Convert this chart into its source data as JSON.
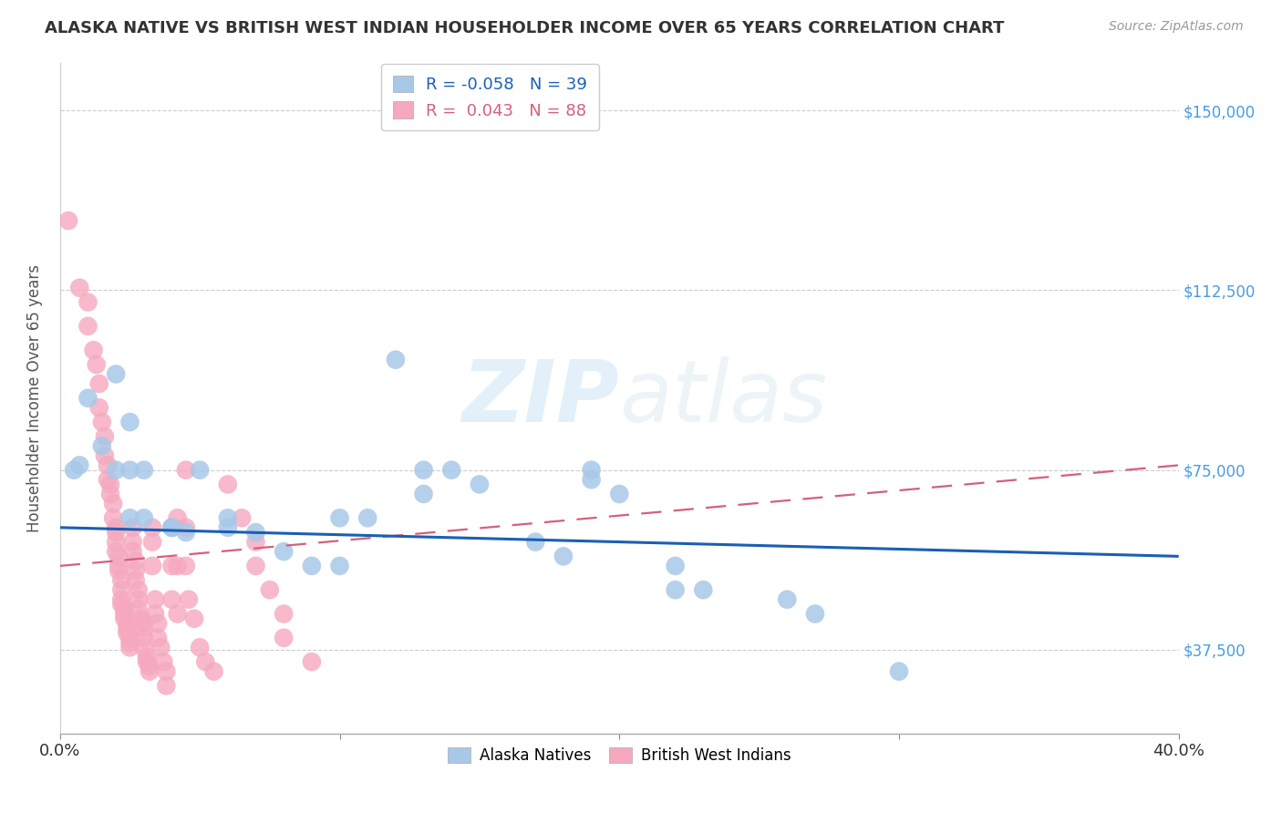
{
  "title": "ALASKA NATIVE VS BRITISH WEST INDIAN HOUSEHOLDER INCOME OVER 65 YEARS CORRELATION CHART",
  "source": "Source: ZipAtlas.com",
  "ylabel": "Householder Income Over 65 years",
  "xlim": [
    0.0,
    0.4
  ],
  "ylim": [
    20000,
    160000
  ],
  "yticks": [
    37500,
    75000,
    112500,
    150000
  ],
  "ytick_labels": [
    "$37,500",
    "$75,000",
    "$112,500",
    "$150,000"
  ],
  "watermark_1": "ZIP",
  "watermark_2": "atlas",
  "alaska_color": "#a8c8e8",
  "bwi_color": "#f5a8be",
  "alaska_line_color": "#1a5fb4",
  "bwi_line_color": "#d4607a",
  "alaska_R": -0.058,
  "alaska_N": 39,
  "bwi_R": 0.043,
  "bwi_N": 88,
  "alaska_trend": [
    63000,
    57000
  ],
  "bwi_trend": [
    55000,
    76000
  ],
  "alaska_points": [
    [
      0.005,
      75000
    ],
    [
      0.007,
      76000
    ],
    [
      0.01,
      90000
    ],
    [
      0.015,
      80000
    ],
    [
      0.02,
      95000
    ],
    [
      0.02,
      75000
    ],
    [
      0.025,
      85000
    ],
    [
      0.025,
      75000
    ],
    [
      0.025,
      65000
    ],
    [
      0.03,
      75000
    ],
    [
      0.03,
      65000
    ],
    [
      0.04,
      63000
    ],
    [
      0.04,
      63000
    ],
    [
      0.045,
      62000
    ],
    [
      0.05,
      75000
    ],
    [
      0.06,
      65000
    ],
    [
      0.06,
      63000
    ],
    [
      0.07,
      62000
    ],
    [
      0.08,
      58000
    ],
    [
      0.09,
      55000
    ],
    [
      0.1,
      55000
    ],
    [
      0.1,
      65000
    ],
    [
      0.11,
      65000
    ],
    [
      0.12,
      98000
    ],
    [
      0.13,
      75000
    ],
    [
      0.13,
      70000
    ],
    [
      0.14,
      75000
    ],
    [
      0.15,
      72000
    ],
    [
      0.17,
      60000
    ],
    [
      0.18,
      57000
    ],
    [
      0.19,
      75000
    ],
    [
      0.19,
      73000
    ],
    [
      0.2,
      70000
    ],
    [
      0.22,
      55000
    ],
    [
      0.22,
      50000
    ],
    [
      0.23,
      50000
    ],
    [
      0.26,
      48000
    ],
    [
      0.27,
      45000
    ],
    [
      0.3,
      33000
    ]
  ],
  "bwi_points": [
    [
      0.003,
      127000
    ],
    [
      0.007,
      113000
    ],
    [
      0.01,
      110000
    ],
    [
      0.01,
      105000
    ],
    [
      0.012,
      100000
    ],
    [
      0.013,
      97000
    ],
    [
      0.014,
      93000
    ],
    [
      0.014,
      88000
    ],
    [
      0.015,
      85000
    ],
    [
      0.016,
      82000
    ],
    [
      0.016,
      78000
    ],
    [
      0.017,
      76000
    ],
    [
      0.017,
      73000
    ],
    [
      0.018,
      72000
    ],
    [
      0.018,
      70000
    ],
    [
      0.019,
      68000
    ],
    [
      0.019,
      65000
    ],
    [
      0.02,
      63000
    ],
    [
      0.02,
      62000
    ],
    [
      0.02,
      60000
    ],
    [
      0.02,
      58000
    ],
    [
      0.021,
      57000
    ],
    [
      0.021,
      55000
    ],
    [
      0.021,
      54000
    ],
    [
      0.022,
      52000
    ],
    [
      0.022,
      50000
    ],
    [
      0.022,
      48000
    ],
    [
      0.022,
      47000
    ],
    [
      0.023,
      46000
    ],
    [
      0.023,
      45000
    ],
    [
      0.023,
      44000
    ],
    [
      0.024,
      43000
    ],
    [
      0.024,
      42000
    ],
    [
      0.024,
      41000
    ],
    [
      0.025,
      40000
    ],
    [
      0.025,
      39000
    ],
    [
      0.025,
      38000
    ],
    [
      0.026,
      63000
    ],
    [
      0.026,
      60000
    ],
    [
      0.026,
      58000
    ],
    [
      0.027,
      56000
    ],
    [
      0.027,
      54000
    ],
    [
      0.027,
      52000
    ],
    [
      0.028,
      50000
    ],
    [
      0.028,
      48000
    ],
    [
      0.028,
      46000
    ],
    [
      0.029,
      44000
    ],
    [
      0.03,
      43000
    ],
    [
      0.03,
      42000
    ],
    [
      0.03,
      40000
    ],
    [
      0.03,
      38000
    ],
    [
      0.031,
      36000
    ],
    [
      0.031,
      35000
    ],
    [
      0.032,
      34000
    ],
    [
      0.032,
      33000
    ],
    [
      0.033,
      63000
    ],
    [
      0.033,
      60000
    ],
    [
      0.033,
      55000
    ],
    [
      0.034,
      48000
    ],
    [
      0.034,
      45000
    ],
    [
      0.035,
      43000
    ],
    [
      0.035,
      40000
    ],
    [
      0.036,
      38000
    ],
    [
      0.037,
      35000
    ],
    [
      0.038,
      33000
    ],
    [
      0.038,
      30000
    ],
    [
      0.04,
      63000
    ],
    [
      0.04,
      55000
    ],
    [
      0.04,
      48000
    ],
    [
      0.042,
      65000
    ],
    [
      0.042,
      55000
    ],
    [
      0.042,
      45000
    ],
    [
      0.045,
      63000
    ],
    [
      0.045,
      55000
    ],
    [
      0.045,
      75000
    ],
    [
      0.046,
      48000
    ],
    [
      0.048,
      44000
    ],
    [
      0.05,
      38000
    ],
    [
      0.052,
      35000
    ],
    [
      0.055,
      33000
    ],
    [
      0.06,
      72000
    ],
    [
      0.065,
      65000
    ],
    [
      0.07,
      60000
    ],
    [
      0.07,
      55000
    ],
    [
      0.075,
      50000
    ],
    [
      0.08,
      45000
    ],
    [
      0.08,
      40000
    ],
    [
      0.09,
      35000
    ]
  ]
}
